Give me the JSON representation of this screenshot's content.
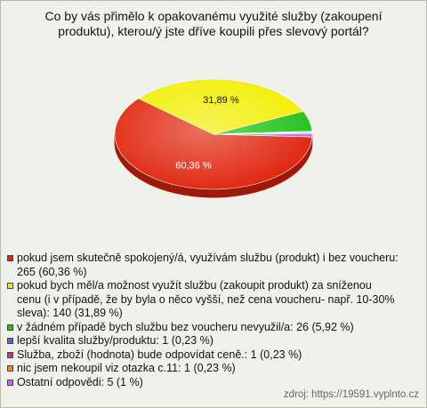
{
  "chart_data": {
    "type": "pie",
    "title": "Co by vás přimělo k opakovanému využité služby (zakoupení produktu), kterou/ý jste dříve koupili přes slevový portál?",
    "categories": [
      "pokud jsem skutečně spokojený/á, využívám službu (produkt) i bez voucheru: 265 (60,36 %)",
      "pokud bych měl/a možnost využít službu (zakoupit produkt) za sníženou cenu (i v případě, že by byla o něco vyšší, než cena voucheru- např. 10-30% sleva): 140 (31,89 %)",
      "v žádném případě bych službu bez voucheru nevyužil/a: 26 (5,92 %)",
      "lepší kvalita služby/produktu: 1 (0,23 %)",
      "Služba, zboží (hodnota) bude odpovídat ceně.: 1 (0,23 %)",
      "nic jsem nekoupil viz otazka c.11: 1 (0,23 %)",
      "Ostatní odpovědi: 5 (1 %)"
    ],
    "values": [
      60.36,
      31.89,
      5.92,
      0.23,
      0.23,
      0.23,
      1
    ],
    "value_labels": [
      "60,36 %",
      "31,89 %",
      null,
      null,
      null,
      null,
      null
    ],
    "colors": [
      "#e0240c",
      "#f2ee00",
      "#22c01a",
      "#3f6fe0",
      "#d8288c",
      "#f08a1c",
      "#c070d8"
    ],
    "source": "zdroj: https://19591.vyplnto.cz"
  }
}
